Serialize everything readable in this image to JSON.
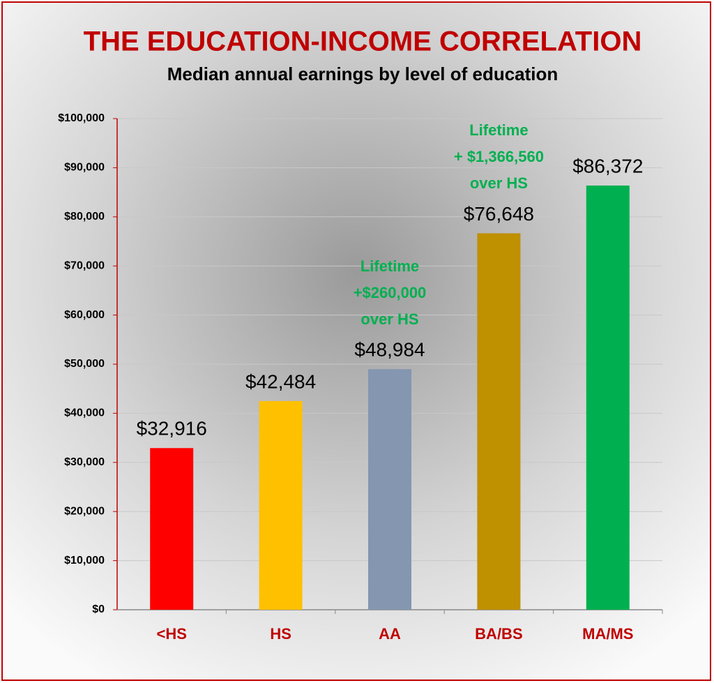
{
  "chart_data": {
    "type": "bar",
    "title": "THE EDUCATION-INCOME CORRELATION",
    "subtitle": "Median annual earnings by level of education",
    "categories": [
      "<HS",
      "HS",
      "AA",
      "BA/BS",
      "MA/MS"
    ],
    "values": [
      32916,
      42484,
      48984,
      76648,
      86372
    ],
    "value_labels": [
      "$32,916",
      "$42,484",
      "$48,984",
      "$76,648",
      "$86,372"
    ],
    "colors": [
      "#ff0000",
      "#ffc000",
      "#8496b0",
      "#bf9000",
      "#00b050"
    ],
    "ylim": [
      0,
      100000
    ],
    "yticks": [
      {
        "value": 0,
        "label": "$0"
      },
      {
        "value": 10000,
        "label": "$10,000"
      },
      {
        "value": 20000,
        "label": "$20,000"
      },
      {
        "value": 30000,
        "label": "$30,000"
      },
      {
        "value": 40000,
        "label": "$40,000"
      },
      {
        "value": 50000,
        "label": "$50,000"
      },
      {
        "value": 60000,
        "label": "$60,000"
      },
      {
        "value": 70000,
        "label": "$70,000"
      },
      {
        "value": 80000,
        "label": "$80,000"
      },
      {
        "value": 90000,
        "label": "$90,000"
      },
      {
        "value": 100000,
        "label": "$100,000"
      }
    ],
    "grid": true,
    "annotations": [
      {
        "category": "AA",
        "lines": [
          "Lifetime",
          "+$260,000",
          "over HS"
        ]
      },
      {
        "category": "BA/BS",
        "lines": [
          "Lifetime",
          "+ $1,366,560",
          "over HS"
        ]
      }
    ]
  }
}
